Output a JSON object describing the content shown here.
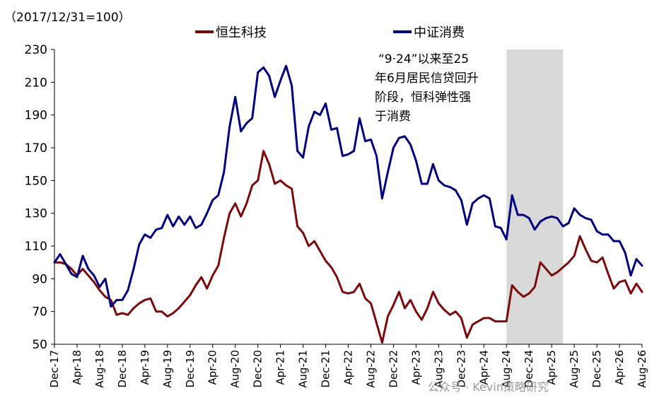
{
  "chart_data": {
    "type": "line",
    "unit_label": "（2017/12/31=100）",
    "ylim": [
      50,
      230
    ],
    "yticks": [
      50,
      70,
      90,
      110,
      130,
      150,
      170,
      190,
      210,
      230
    ],
    "x_tick_labels": [
      "Dec-17",
      "Apr-18",
      "Aug-18",
      "Dec-18",
      "Apr-19",
      "Aug-19",
      "Dec-19",
      "Apr-20",
      "Aug-20",
      "Dec-20",
      "Apr-21",
      "Aug-21",
      "Dec-21",
      "Apr-22",
      "Aug-22",
      "Dec-22",
      "Apr-23",
      "Aug-23",
      "Dec-23",
      "Apr-24",
      "Aug-24",
      "Dec-24",
      "Apr-25",
      "Aug-25",
      "Dec-25",
      "Apr-26",
      "Aug-26"
    ],
    "x_range_months": [
      0,
      104
    ],
    "shaded_region_months": [
      80,
      90
    ],
    "annotation": [
      "“9·24”以来至25",
      "年6月居民信贷回升",
      "阶段，恒科弹性强",
      "于消费"
    ],
    "watermark": "公众号 · Kevin策略研究",
    "colors": {
      "hstech": "#7B0A0A",
      "csi_consumer": "#00007F",
      "shade": "#D9D9D9"
    },
    "grid": false,
    "legend_position": "top-center",
    "series": [
      {
        "name": "恒生科技",
        "color": "#7B0A0A",
        "values": [
          100,
          100,
          99,
          96,
          92,
          96,
          92,
          88,
          83,
          79,
          77,
          68,
          69,
          68,
          72,
          75,
          77,
          78,
          70,
          70,
          67,
          69,
          72,
          76,
          80,
          86,
          91,
          84,
          92,
          98,
          115,
          130,
          136,
          128,
          136,
          147,
          150,
          168,
          160,
          148,
          150,
          147,
          145,
          122,
          118,
          110,
          113,
          107,
          101,
          97,
          91,
          82,
          81,
          82,
          87,
          78,
          75,
          63,
          51,
          67,
          74,
          82,
          72,
          77,
          70,
          65,
          72,
          82,
          75,
          71,
          68,
          70,
          66,
          54,
          62,
          64,
          66,
          66,
          64,
          64,
          64,
          86,
          82,
          79,
          81,
          85,
          100,
          96,
          92,
          94,
          97,
          100,
          104,
          116,
          108,
          101,
          100,
          103,
          93,
          84,
          88,
          89,
          81,
          87,
          82
        ]
      },
      {
        "name": "中证消费",
        "color": "#00007F",
        "values": [
          100,
          105,
          99,
          93,
          91,
          104,
          96,
          92,
          85,
          90,
          73,
          77,
          77,
          83,
          96,
          111,
          117,
          115,
          120,
          121,
          129,
          122,
          128,
          123,
          128,
          121,
          123,
          130,
          138,
          141,
          155,
          183,
          201,
          180,
          185,
          188,
          216,
          219,
          214,
          201,
          211,
          220,
          208,
          168,
          164,
          183,
          192,
          190,
          197,
          181,
          182,
          165,
          166,
          168,
          188,
          174,
          175,
          165,
          139,
          155,
          170,
          176,
          177,
          172,
          162,
          148,
          148,
          160,
          150,
          147,
          146,
          144,
          138,
          123,
          136,
          139,
          141,
          139,
          122,
          121,
          114,
          141,
          129,
          129,
          127,
          120,
          125,
          127,
          128,
          127,
          122,
          124,
          133,
          129,
          127,
          126,
          119,
          117,
          117,
          113,
          113,
          106,
          92,
          102,
          98
        ]
      }
    ]
  }
}
